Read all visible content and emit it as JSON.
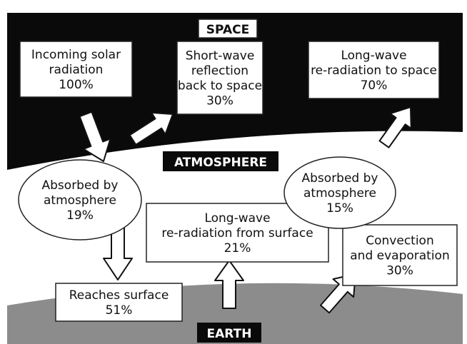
{
  "space": "SPACE",
  "atmosphere": "ATMOSPHERE",
  "earth": "EARTH",
  "boxes": [
    {
      "lines": [
        "Incoming solar",
        "radiation",
        "100%"
      ]
    },
    {
      "lines": [
        "Short-wave",
        "reflection",
        "back to space",
        "30%"
      ]
    },
    {
      "lines": [
        "Long-wave",
        "re-radiation to space",
        "70%"
      ]
    },
    {
      "lines": [
        "Long-wave",
        "re-radiation from surface",
        "21%"
      ]
    },
    {
      "lines": [
        "Convection",
        "and evaporation",
        "30%"
      ]
    },
    {
      "lines": [
        "Reaches surface",
        "51%"
      ]
    }
  ],
  "ellipses": [
    {
      "lines": [
        "Absorbed by",
        "atmosphere",
        "19%"
      ]
    },
    {
      "lines": [
        "Absorbed by",
        "atmosphere",
        "15%"
      ]
    }
  ]
}
